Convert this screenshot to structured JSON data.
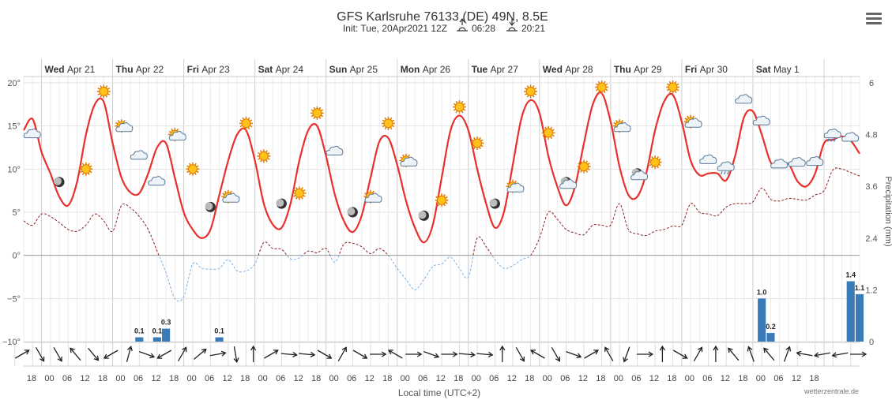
{
  "header": {
    "title": "GFS Karlsruhe 76133 (DE) 49N, 8.5E",
    "init": "Init: Tue, 20Apr2021 12Z",
    "sunrise": "06:28",
    "sunset": "20:21"
  },
  "menu": {
    "icon": "hamburger-menu-icon"
  },
  "footer": {
    "xlabel": "Local time (UTC+2)",
    "credit": "wetterzentrale.de"
  },
  "chart_data": {
    "type": "line",
    "title": "GFS Karlsruhe 76133 (DE) 49N, 8.5E",
    "xlabel": "Local time (UTC+2)",
    "ylabel": "",
    "y2label": "Precipitation (mm)",
    "ylim": [
      -10,
      20
    ],
    "y2lim": [
      0,
      6
    ],
    "y_ticks": [
      "20°",
      "15°",
      "10°",
      "5°",
      "0°",
      "−5°",
      "−10°"
    ],
    "y2_ticks": [
      "6",
      "4.8",
      "3.6",
      "2.4",
      "1.2",
      "0"
    ],
    "x_start_hour": 18,
    "x_end_hour": 20,
    "x_tick_labels": [
      "18",
      "00",
      "06",
      "12",
      "18",
      "00",
      "06",
      "12",
      "18",
      "00",
      "06",
      "12",
      "18",
      "00",
      "06",
      "12",
      "18",
      "00",
      "06",
      "12",
      "18",
      "00",
      "06",
      "12",
      "18",
      "00",
      "06",
      "12",
      "18",
      "00",
      "06",
      "12",
      "18",
      "00",
      "06",
      "12",
      "18",
      "00",
      "06",
      "12",
      "18",
      "00",
      "06",
      "12",
      "18"
    ],
    "days": [
      {
        "dow": "Wed",
        "date": "Apr 21"
      },
      {
        "dow": "Thu",
        "date": "Apr 22"
      },
      {
        "dow": "Fri",
        "date": "Apr 23"
      },
      {
        "dow": "Sat",
        "date": "Apr 24"
      },
      {
        "dow": "Sun",
        "date": "Apr 25"
      },
      {
        "dow": "Mon",
        "date": "Apr 26"
      },
      {
        "dow": "Tue",
        "date": "Apr 27"
      },
      {
        "dow": "Wed",
        "date": "Apr 28"
      },
      {
        "dow": "Thu",
        "date": "Apr 29"
      },
      {
        "dow": "Fri",
        "date": "Apr 30"
      },
      {
        "dow": "Sat",
        "date": "May 1"
      }
    ],
    "series": [
      {
        "name": "Temperature (°C)",
        "color": "#e8302e",
        "style": "solid",
        "points": [
          [
            0,
            14.5
          ],
          [
            3,
            15.8
          ],
          [
            6,
            12
          ],
          [
            9,
            9.5
          ],
          [
            12,
            6.8
          ],
          [
            15,
            5.8
          ],
          [
            18,
            8.5
          ],
          [
            21,
            14
          ],
          [
            24,
            17.5
          ],
          [
            27,
            17.8
          ],
          [
            30,
            13
          ],
          [
            33,
            9
          ],
          [
            36,
            7.3
          ],
          [
            39,
            7.2
          ],
          [
            42,
            9.5
          ],
          [
            45,
            12.5
          ],
          [
            48,
            13
          ],
          [
            51,
            9
          ],
          [
            54,
            5
          ],
          [
            57,
            3
          ],
          [
            60,
            2
          ],
          [
            63,
            3
          ],
          [
            66,
            7
          ],
          [
            69,
            11
          ],
          [
            72,
            14
          ],
          [
            75,
            14.5
          ],
          [
            78,
            11
          ],
          [
            81,
            6
          ],
          [
            84,
            3.6
          ],
          [
            87,
            3.2
          ],
          [
            90,
            6
          ],
          [
            93,
            11
          ],
          [
            96,
            14.5
          ],
          [
            99,
            15
          ],
          [
            102,
            11.5
          ],
          [
            105,
            7
          ],
          [
            108,
            4
          ],
          [
            111,
            2.7
          ],
          [
            114,
            4.6
          ],
          [
            117,
            9
          ],
          [
            120,
            13.2
          ],
          [
            123,
            13.6
          ],
          [
            126,
            10.5
          ],
          [
            129,
            6.3
          ],
          [
            132,
            3.2
          ],
          [
            135,
            1.5
          ],
          [
            138,
            3.5
          ],
          [
            141,
            9
          ],
          [
            144,
            14.5
          ],
          [
            147,
            16.2
          ],
          [
            150,
            14.5
          ],
          [
            153,
            10
          ],
          [
            156,
            6
          ],
          [
            159,
            3.2
          ],
          [
            162,
            5
          ],
          [
            165,
            10.5
          ],
          [
            168,
            16
          ],
          [
            171,
            18
          ],
          [
            174,
            16.5
          ],
          [
            177,
            11.5
          ],
          [
            180,
            8
          ],
          [
            183,
            5.8
          ],
          [
            186,
            8
          ],
          [
            189,
            13
          ],
          [
            192,
            17.5
          ],
          [
            195,
            18.8
          ],
          [
            198,
            15.5
          ],
          [
            201,
            10.3
          ],
          [
            204,
            7
          ],
          [
            207,
            6.8
          ],
          [
            210,
            9.5
          ],
          [
            213,
            14.5
          ],
          [
            216,
            17.8
          ],
          [
            219,
            18.6
          ],
          [
            222,
            15.5
          ],
          [
            225,
            11
          ],
          [
            228,
            9.3
          ],
          [
            231,
            9.5
          ],
          [
            234,
            9.5
          ],
          [
            237,
            8.7
          ],
          [
            240,
            11.5
          ],
          [
            243,
            16
          ],
          [
            246,
            16.7
          ],
          [
            249,
            14
          ],
          [
            252,
            10.8
          ],
          [
            255,
            10.2
          ],
          [
            258,
            10.6
          ],
          [
            261,
            8.6
          ],
          [
            264,
            8
          ],
          [
            267,
            9.5
          ],
          [
            270,
            13
          ],
          [
            273,
            13.4
          ],
          [
            276,
            13.8
          ],
          [
            279,
            13.3
          ],
          [
            282,
            11.8
          ]
        ]
      },
      {
        "name": "Dew point (°C)",
        "color": "#8b2020",
        "color_below_zero": "#7fb0e0",
        "style": "dashed",
        "points": [
          [
            0,
            4
          ],
          [
            3,
            3.5
          ],
          [
            6,
            4.8
          ],
          [
            9,
            4.5
          ],
          [
            12,
            3.8
          ],
          [
            15,
            3
          ],
          [
            18,
            2.8
          ],
          [
            21,
            3.5
          ],
          [
            24,
            4.8
          ],
          [
            27,
            4
          ],
          [
            30,
            2.8
          ],
          [
            33,
            5.8
          ],
          [
            36,
            5.5
          ],
          [
            39,
            4.5
          ],
          [
            42,
            3
          ],
          [
            45,
            0.5
          ],
          [
            48,
            -2
          ],
          [
            51,
            -5
          ],
          [
            54,
            -4.8
          ],
          [
            57,
            -1
          ],
          [
            60,
            -1.5
          ],
          [
            63,
            -1.6
          ],
          [
            66,
            -1.5
          ],
          [
            69,
            -0.5
          ],
          [
            72,
            -1.8
          ],
          [
            75,
            -1.8
          ],
          [
            78,
            -1
          ],
          [
            81,
            1.5
          ],
          [
            84,
            0.8
          ],
          [
            87,
            0.7
          ],
          [
            90,
            -0.4
          ],
          [
            93,
            -0.3
          ],
          [
            96,
            0.5
          ],
          [
            99,
            0.3
          ],
          [
            102,
            0.8
          ],
          [
            105,
            -0.8
          ],
          [
            108,
            1.3
          ],
          [
            111,
            1.4
          ],
          [
            114,
            1
          ],
          [
            117,
            0.2
          ],
          [
            120,
            0.8
          ],
          [
            123,
            0
          ],
          [
            126,
            -1.5
          ],
          [
            129,
            -2.8
          ],
          [
            132,
            -4
          ],
          [
            135,
            -2.8
          ],
          [
            138,
            -1.3
          ],
          [
            141,
            -1
          ],
          [
            144,
            -0.2
          ],
          [
            147,
            -1.5
          ],
          [
            150,
            -2.5
          ],
          [
            153,
            2
          ],
          [
            156,
            1
          ],
          [
            159,
            -0.5
          ],
          [
            162,
            -1.5
          ],
          [
            165,
            -1.2
          ],
          [
            168,
            -0.5
          ],
          [
            171,
            0
          ],
          [
            174,
            2
          ],
          [
            177,
            5
          ],
          [
            180,
            4.2
          ],
          [
            183,
            3
          ],
          [
            186,
            2.6
          ],
          [
            189,
            2.4
          ],
          [
            192,
            3.5
          ],
          [
            195,
            3.5
          ],
          [
            198,
            3.5
          ],
          [
            201,
            6
          ],
          [
            204,
            3
          ],
          [
            207,
            2.5
          ],
          [
            210,
            2.3
          ],
          [
            213,
            2.8
          ],
          [
            216,
            3
          ],
          [
            219,
            3.4
          ],
          [
            222,
            3.5
          ],
          [
            225,
            6
          ],
          [
            228,
            5
          ],
          [
            231,
            4.8
          ],
          [
            234,
            4.6
          ],
          [
            237,
            5.6
          ],
          [
            240,
            6
          ],
          [
            243,
            6
          ],
          [
            246,
            6.2
          ],
          [
            249,
            7.8
          ],
          [
            252,
            6.5
          ],
          [
            255,
            6.3
          ],
          [
            258,
            6.6
          ],
          [
            261,
            6.5
          ],
          [
            264,
            6.4
          ],
          [
            267,
            7
          ],
          [
            270,
            7.5
          ],
          [
            273,
            9.9
          ],
          [
            276,
            10
          ],
          [
            279,
            9.6
          ],
          [
            282,
            9.2
          ]
        ]
      },
      {
        "name": "Precipitation (mm)",
        "type": "bar",
        "color": "#3a7ab8",
        "points": [
          [
            39,
            0.1
          ],
          [
            45,
            0.1
          ],
          [
            48,
            0.3
          ],
          [
            66,
            0.1
          ],
          [
            249,
            1.0
          ],
          [
            252,
            0.2
          ],
          [
            279,
            1.4
          ],
          [
            282,
            1.1
          ]
        ],
        "labels": [
          "0.1",
          "0.1",
          "0.3",
          "0.1",
          "1.0",
          "0.2",
          "1.4",
          "1.1"
        ]
      }
    ],
    "weather_icons": [
      {
        "h": 3,
        "t": 14,
        "icon": "cloud"
      },
      {
        "h": 12,
        "t": 8.5,
        "icon": "moon"
      },
      {
        "h": 21,
        "t": 10,
        "icon": "sun"
      },
      {
        "h": 27,
        "t": 19,
        "icon": "sun"
      },
      {
        "h": 33,
        "t": 15,
        "icon": "sun-cloud"
      },
      {
        "h": 39,
        "t": 11.5,
        "icon": "cloud"
      },
      {
        "h": 45,
        "t": 8.5,
        "icon": "cloud"
      },
      {
        "h": 51,
        "t": 14,
        "icon": "sun-cloud"
      },
      {
        "h": 57,
        "t": 10,
        "icon": "sun"
      },
      {
        "h": 63,
        "t": 5.6,
        "icon": "moon"
      },
      {
        "h": 69,
        "t": 6.8,
        "icon": "sun-cloud"
      },
      {
        "h": 75,
        "t": 15.3,
        "icon": "sun"
      },
      {
        "h": 81,
        "t": 11.5,
        "icon": "sun"
      },
      {
        "h": 87,
        "t": 6,
        "icon": "moon"
      },
      {
        "h": 93,
        "t": 7.2,
        "icon": "sun"
      },
      {
        "h": 99,
        "t": 16.5,
        "icon": "sun"
      },
      {
        "h": 105,
        "t": 12,
        "icon": "cloud"
      },
      {
        "h": 111,
        "t": 5,
        "icon": "moon"
      },
      {
        "h": 117,
        "t": 6.8,
        "icon": "sun-cloud"
      },
      {
        "h": 123,
        "t": 15.3,
        "icon": "sun"
      },
      {
        "h": 129,
        "t": 11,
        "icon": "sun-cloud"
      },
      {
        "h": 135,
        "t": 4.6,
        "icon": "moon"
      },
      {
        "h": 141,
        "t": 6.4,
        "icon": "sun"
      },
      {
        "h": 147,
        "t": 17.2,
        "icon": "sun"
      },
      {
        "h": 153,
        "t": 13,
        "icon": "sun"
      },
      {
        "h": 159,
        "t": 6,
        "icon": "moon"
      },
      {
        "h": 165,
        "t": 8,
        "icon": "sun-cloud"
      },
      {
        "h": 171,
        "t": 19,
        "icon": "sun"
      },
      {
        "h": 177,
        "t": 14.2,
        "icon": "sun"
      },
      {
        "h": 183,
        "t": 8.5,
        "icon": "moon-cloud"
      },
      {
        "h": 189,
        "t": 10.3,
        "icon": "sun"
      },
      {
        "h": 195,
        "t": 19.5,
        "icon": "sun"
      },
      {
        "h": 201,
        "t": 15,
        "icon": "sun-cloud"
      },
      {
        "h": 207,
        "t": 9.5,
        "icon": "moon-cloud"
      },
      {
        "h": 213,
        "t": 10.8,
        "icon": "sun"
      },
      {
        "h": 219,
        "t": 19.5,
        "icon": "sun"
      },
      {
        "h": 225,
        "t": 15.5,
        "icon": "sun-cloud"
      },
      {
        "h": 231,
        "t": 11,
        "icon": "cloud"
      },
      {
        "h": 237,
        "t": 10.2,
        "icon": "cloud-rain"
      },
      {
        "h": 243,
        "t": 18,
        "icon": "cloud"
      },
      {
        "h": 249,
        "t": 15.5,
        "icon": "cloud"
      },
      {
        "h": 255,
        "t": 10.5,
        "icon": "cloud"
      },
      {
        "h": 261,
        "t": 10.7,
        "icon": "cloud"
      },
      {
        "h": 267,
        "t": 10.8,
        "icon": "cloud"
      },
      {
        "h": 273,
        "t": 14,
        "icon": "cloud-rain"
      },
      {
        "h": 279,
        "t": 13.6,
        "icon": "cloud"
      }
    ],
    "wind_directions_deg": [
      240,
      330,
      330,
      140,
      320,
      60,
      195,
      290,
      60,
      210,
      230,
      260,
      350,
      180,
      240,
      275,
      275,
      300,
      210,
      300,
      270,
      120,
      270,
      290,
      270,
      275,
      275,
      180,
      330,
      120,
      330,
      290,
      240,
      150,
      20,
      270,
      180,
      300,
      210,
      180,
      140,
      160,
      140,
      200,
      100,
      80,
      80,
      270,
      275,
      110,
      250,
      90,
      75,
      60,
      60,
      250
    ]
  }
}
